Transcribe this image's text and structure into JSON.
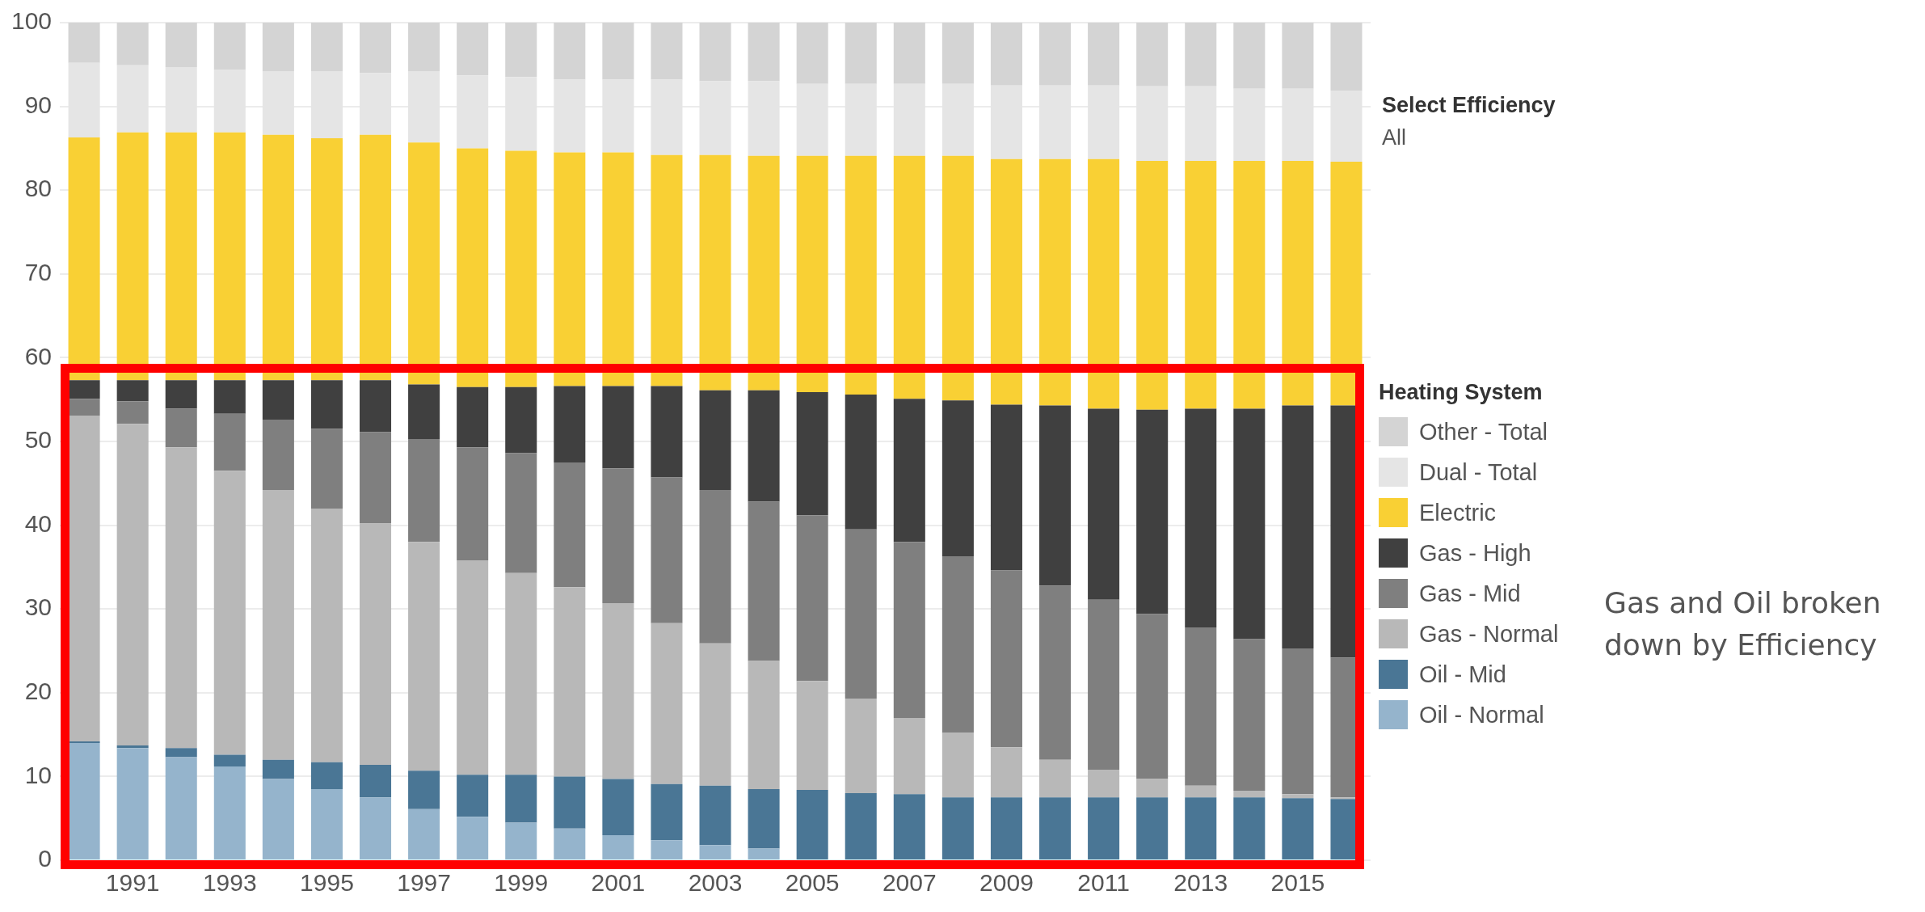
{
  "chart_data": {
    "type": "bar",
    "stacked": true,
    "legend_title": "Heating System",
    "legend": "right",
    "grid": "y",
    "annotations": [
      "Select Efficiency",
      "All",
      "Gas and Oil broken down by Efficiency"
    ],
    "categories": [
      null,
      "1991",
      null,
      "1993",
      null,
      "1995",
      null,
      "1997",
      null,
      "1999",
      null,
      "2001",
      null,
      "2003",
      null,
      "2005",
      null,
      "2007",
      null,
      "2009",
      null,
      "2011",
      null,
      "2013",
      null,
      "2015",
      null
    ],
    "ylim": [
      0,
      100
    ],
    "yticks": [
      0,
      10,
      20,
      30,
      40,
      50,
      60,
      70,
      80,
      90,
      100
    ],
    "series": [
      {
        "name": "Oil - Normal",
        "color": "#95b4cc",
        "values": [
          14.0,
          13.4,
          12.3,
          11.2,
          9.7,
          8.5,
          7.5,
          6.1,
          5.2,
          4.5,
          3.8,
          3.0,
          2.4,
          1.8,
          1.4,
          0,
          0,
          0,
          0,
          0,
          0,
          0,
          0,
          0,
          0,
          0,
          0
        ]
      },
      {
        "name": "Oil - Mid",
        "color": "#4a7695",
        "values": [
          0.2,
          0.3,
          1.1,
          1.4,
          2.3,
          3.2,
          3.9,
          4.6,
          5.0,
          5.7,
          6.2,
          6.7,
          6.7,
          7.1,
          7.1,
          8.4,
          8.0,
          7.9,
          7.5,
          7.5,
          7.5,
          7.5,
          7.5,
          7.5,
          7.5,
          7.4,
          7.3
        ]
      },
      {
        "name": "Gas - Normal",
        "color": "#b8b8b8",
        "values": [
          38.9,
          38.4,
          35.9,
          33.9,
          32.2,
          30.3,
          28.8,
          27.3,
          25.6,
          24.1,
          22.6,
          21.0,
          19.2,
          17.0,
          15.3,
          13.0,
          11.3,
          9.1,
          7.7,
          6.0,
          4.5,
          3.3,
          2.2,
          1.4,
          0.8,
          0.5,
          0.2
        ]
      },
      {
        "name": "Gas - Mid",
        "color": "#7f7f7f",
        "values": [
          2.0,
          2.7,
          4.6,
          6.8,
          8.4,
          9.5,
          10.9,
          12.3,
          13.5,
          14.3,
          14.9,
          16.1,
          17.4,
          18.3,
          19.0,
          19.8,
          20.2,
          21.0,
          21.1,
          21.1,
          20.8,
          20.3,
          19.7,
          18.9,
          18.1,
          17.4,
          16.7
        ]
      },
      {
        "name": "Gas - High",
        "color": "#404040",
        "values": [
          2.2,
          2.5,
          3.4,
          4.0,
          4.7,
          5.8,
          6.2,
          6.5,
          7.2,
          7.9,
          9.1,
          9.8,
          10.9,
          11.9,
          13.3,
          14.7,
          16.1,
          17.1,
          18.6,
          19.8,
          21.5,
          22.8,
          24.4,
          26.1,
          27.5,
          29.0,
          30.1
        ]
      },
      {
        "name": "Electric",
        "color": "#f9d034",
        "values": [
          29.0,
          29.6,
          29.6,
          29.6,
          29.3,
          28.9,
          29.3,
          28.9,
          28.5,
          28.2,
          27.9,
          27.9,
          27.6,
          28.1,
          28.0,
          28.2,
          28.5,
          29.0,
          29.2,
          29.3,
          29.4,
          29.8,
          29.7,
          29.6,
          29.6,
          29.2,
          29.1
        ]
      },
      {
        "name": "Dual - Total",
        "color": "#e5e5e5",
        "values": [
          8.9,
          8.0,
          7.8,
          7.5,
          7.6,
          8.0,
          7.4,
          8.5,
          8.7,
          8.8,
          8.7,
          8.7,
          9.0,
          8.8,
          8.9,
          8.6,
          8.6,
          8.6,
          8.6,
          8.8,
          8.8,
          8.8,
          8.9,
          8.9,
          8.6,
          8.6,
          8.5
        ]
      },
      {
        "name": "Other - Total",
        "color": "#d4d4d4",
        "values": [
          4.8,
          5.1,
          5.3,
          5.6,
          5.8,
          5.8,
          6.0,
          5.8,
          6.3,
          6.5,
          6.8,
          6.8,
          6.8,
          7.0,
          7.0,
          7.3,
          7.3,
          7.3,
          7.3,
          7.5,
          7.5,
          7.5,
          7.6,
          7.6,
          7.9,
          7.9,
          8.1
        ]
      }
    ]
  }
}
